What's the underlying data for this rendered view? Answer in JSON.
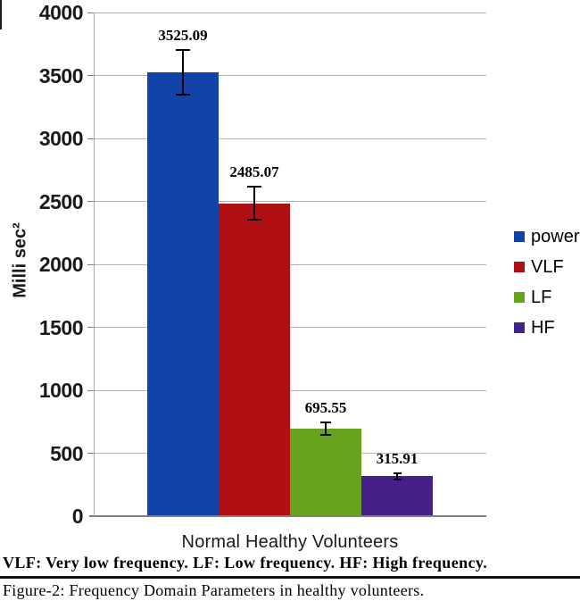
{
  "figure": {
    "caption_definitions": "VLF: Very low frequency. LF: Low frequency. HF: High frequency.",
    "figure_caption": "Figure-2: Frequency Domain Parameters in healthy volunteers."
  },
  "chart_data": {
    "type": "bar",
    "title": "",
    "xlabel": "Normal Healthy Volunteers",
    "ylabel": "Milli sec²",
    "categories": [
      "Normal Healthy Volunteers"
    ],
    "series": [
      {
        "name": "power",
        "value": 3525.09,
        "value_label": "3525.09",
        "error": 175,
        "color": "#1243A8"
      },
      {
        "name": "VLF",
        "value": 2485.07,
        "value_label": "2485.07",
        "error": 130,
        "color": "#B01013"
      },
      {
        "name": "LF",
        "value": 695.55,
        "value_label": "695.55",
        "error": 50,
        "color": "#68A320"
      },
      {
        "name": "HF",
        "value": 315.91,
        "value_label": "315.91",
        "error": 28,
        "color": "#452088"
      }
    ],
    "ylim": [
      0,
      4000
    ],
    "ytick_step": 500,
    "ytick_labels": [
      "0",
      "500",
      "1000",
      "1500",
      "2000",
      "2500",
      "3000",
      "3500",
      "4000"
    ],
    "grid": true,
    "error_bars": true,
    "legend_position": "right",
    "legend_entries": [
      "power",
      "VLF",
      "LF",
      "HF"
    ],
    "colors": {
      "gridline": "#b3b3b3",
      "axis": "#808080",
      "error_bar": "#000000",
      "text": "#1a1a1a"
    }
  }
}
